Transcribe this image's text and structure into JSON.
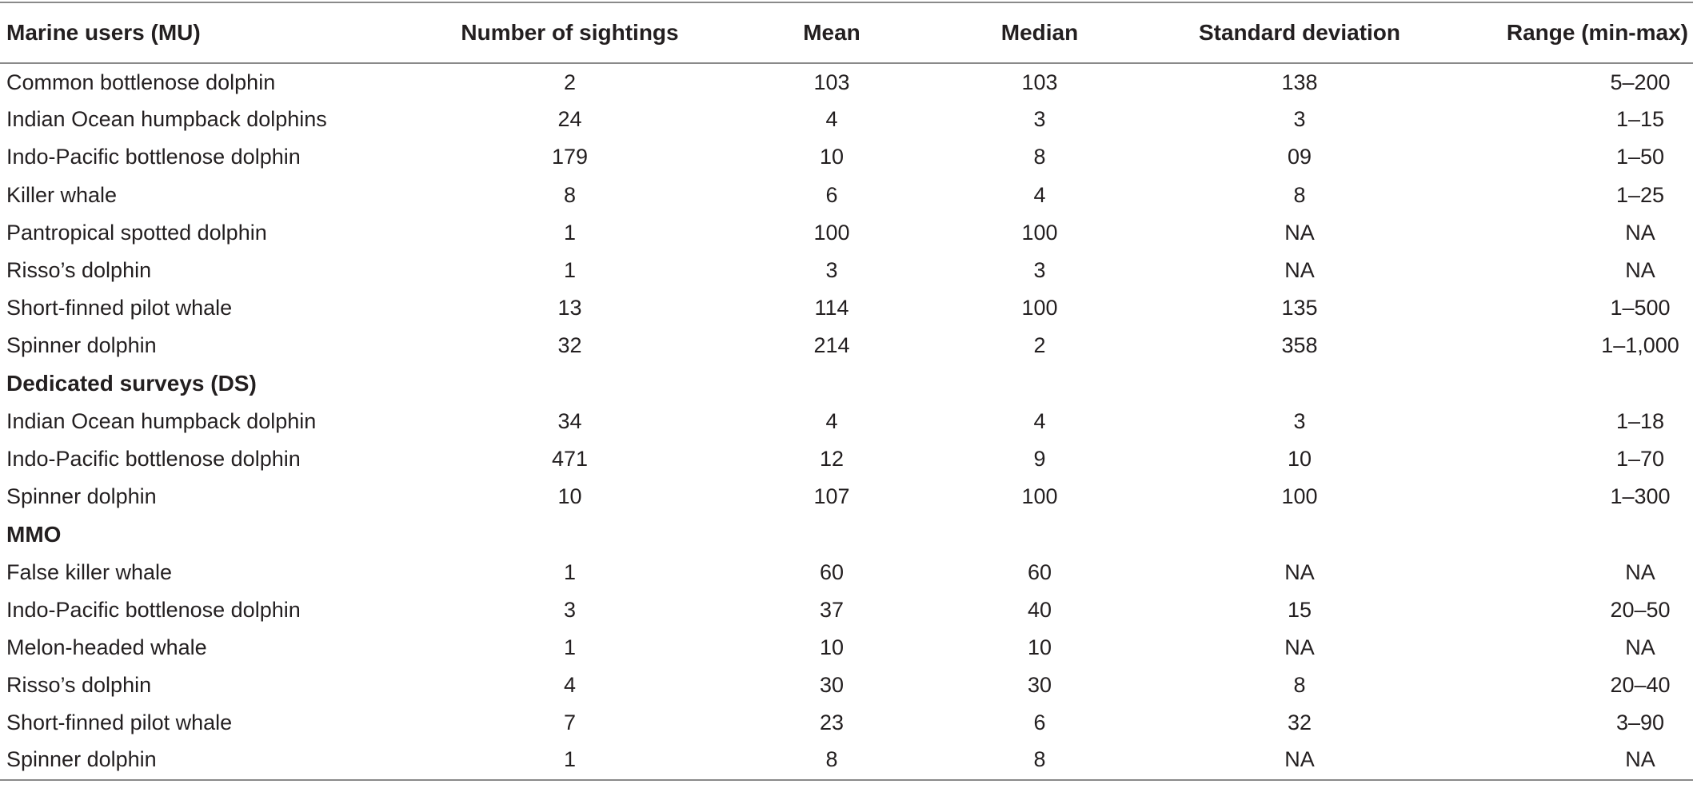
{
  "table": {
    "headers": [
      "Marine users (MU)",
      "Number of sightings",
      "Mean",
      "Median",
      "Standard deviation",
      "Range (min-max)"
    ],
    "rows": [
      {
        "type": "data",
        "cells": [
          "Common bottlenose dolphin",
          "2",
          "103",
          "103",
          "138",
          "5–200"
        ]
      },
      {
        "type": "data",
        "cells": [
          "Indian Ocean humpback dolphins",
          "24",
          "4",
          "3",
          "3",
          "1–15"
        ]
      },
      {
        "type": "data",
        "cells": [
          "Indo-Pacific bottlenose dolphin",
          "179",
          "10",
          "8",
          "09",
          "1–50"
        ]
      },
      {
        "type": "data",
        "cells": [
          "Killer whale",
          "8",
          "6",
          "4",
          "8",
          "1–25"
        ]
      },
      {
        "type": "data",
        "cells": [
          "Pantropical spotted dolphin",
          "1",
          "100",
          "100",
          "NA",
          "NA"
        ]
      },
      {
        "type": "data",
        "cells": [
          "Risso’s dolphin",
          "1",
          "3",
          "3",
          "NA",
          "NA"
        ]
      },
      {
        "type": "data",
        "cells": [
          "Short-finned pilot whale",
          "13",
          "114",
          "100",
          "135",
          "1–500"
        ]
      },
      {
        "type": "data",
        "cells": [
          "Spinner dolphin",
          "32",
          "214",
          "2",
          "358",
          "1–1,000"
        ]
      },
      {
        "type": "section",
        "label": "Dedicated surveys (DS)"
      },
      {
        "type": "data",
        "cells": [
          "Indian Ocean humpback dolphin",
          "34",
          "4",
          "4",
          "3",
          "1–18"
        ]
      },
      {
        "type": "data",
        "cells": [
          "Indo-Pacific bottlenose dolphin",
          "471",
          "12",
          "9",
          "10",
          "1–70"
        ]
      },
      {
        "type": "data",
        "cells": [
          "Spinner dolphin",
          "10",
          "107",
          "100",
          "100",
          "1–300"
        ]
      },
      {
        "type": "section",
        "label": "MMO"
      },
      {
        "type": "data",
        "cells": [
          "False killer whale",
          "1",
          "60",
          "60",
          "NA",
          "NA"
        ]
      },
      {
        "type": "data",
        "cells": [
          "Indo-Pacific bottlenose dolphin",
          "3",
          "37",
          "40",
          "15",
          "20–50"
        ]
      },
      {
        "type": "data",
        "cells": [
          "Melon-headed whale",
          "1",
          "10",
          "10",
          "NA",
          "NA"
        ]
      },
      {
        "type": "data",
        "cells": [
          "Risso’s dolphin",
          "4",
          "30",
          "30",
          "8",
          "20–40"
        ]
      },
      {
        "type": "data",
        "cells": [
          "Short-finned pilot whale",
          "7",
          "23",
          "6",
          "32",
          "3–90"
        ]
      },
      {
        "type": "data",
        "cells": [
          "Spinner dolphin",
          "1",
          "8",
          "8",
          "NA",
          "NA"
        ]
      }
    ]
  }
}
